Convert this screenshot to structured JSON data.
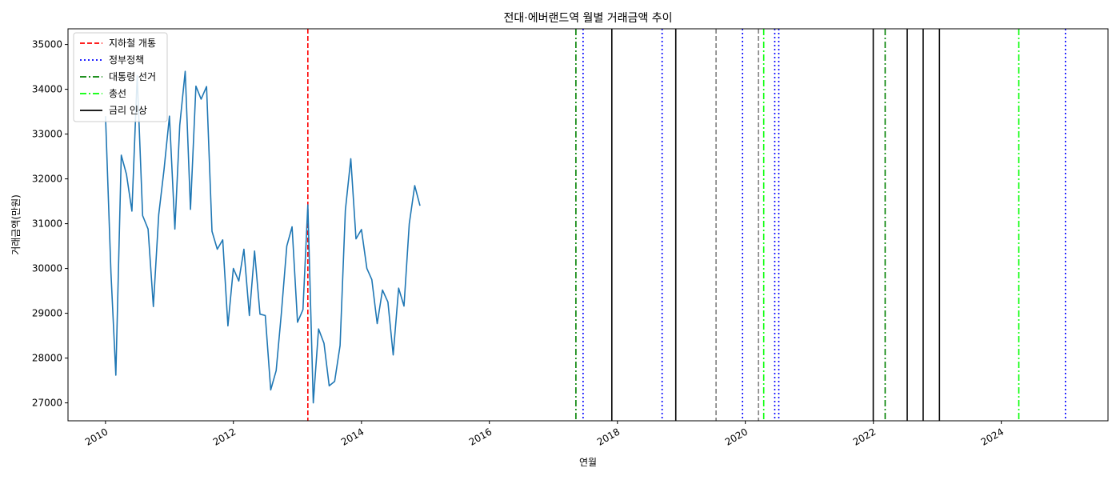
{
  "chart_data": {
    "type": "line",
    "title": "전대·에버랜드역 월별 거래금액 추이",
    "xlabel": "연월",
    "ylabel": "거래금액(만원)",
    "xlim": [
      "2009-06-01",
      "2025-09-01"
    ],
    "ylim": [
      26600,
      35350
    ],
    "x_ticks": [
      "2010",
      "2012",
      "2014",
      "2016",
      "2018",
      "2020",
      "2022",
      "2024"
    ],
    "y_ticks": [
      27000,
      28000,
      29000,
      30000,
      31000,
      32000,
      33000,
      34000,
      35000
    ],
    "legend_position": "top-left",
    "series": [
      {
        "color": "#1f77b4",
        "points": [
          [
            "2010-01-01",
            33400
          ],
          [
            "2010-02-01",
            29900
          ],
          [
            "2010-03-01",
            27620
          ],
          [
            "2010-04-01",
            32530
          ],
          [
            "2010-05-01",
            32100
          ],
          [
            "2010-06-01",
            31280
          ],
          [
            "2010-07-01",
            34300
          ],
          [
            "2010-08-01",
            31180
          ],
          [
            "2010-09-01",
            30880
          ],
          [
            "2010-10-01",
            29150
          ],
          [
            "2010-11-01",
            31200
          ],
          [
            "2010-12-01",
            32200
          ],
          [
            "2011-01-01",
            33400
          ],
          [
            "2011-02-01",
            30880
          ],
          [
            "2011-03-01",
            33200
          ],
          [
            "2011-04-01",
            34400
          ],
          [
            "2011-05-01",
            31320
          ],
          [
            "2011-06-01",
            34070
          ],
          [
            "2011-07-01",
            33780
          ],
          [
            "2011-08-01",
            34060
          ],
          [
            "2011-09-01",
            30830
          ],
          [
            "2011-10-01",
            30430
          ],
          [
            "2011-11-01",
            30640
          ],
          [
            "2011-12-01",
            28720
          ],
          [
            "2012-01-01",
            30000
          ],
          [
            "2012-02-01",
            29720
          ],
          [
            "2012-03-01",
            30430
          ],
          [
            "2012-04-01",
            28950
          ],
          [
            "2012-05-01",
            30390
          ],
          [
            "2012-06-01",
            28980
          ],
          [
            "2012-07-01",
            28950
          ],
          [
            "2012-08-01",
            27290
          ],
          [
            "2012-09-01",
            27720
          ],
          [
            "2012-10-01",
            29000
          ],
          [
            "2012-11-01",
            30500
          ],
          [
            "2012-12-01",
            30930
          ],
          [
            "2013-01-01",
            28800
          ],
          [
            "2013-02-01",
            29080
          ],
          [
            "2013-03-01",
            31420
          ],
          [
            "2013-04-01",
            27000
          ],
          [
            "2013-05-01",
            28650
          ],
          [
            "2013-06-01",
            28330
          ],
          [
            "2013-07-01",
            27380
          ],
          [
            "2013-08-01",
            27480
          ],
          [
            "2013-09-01",
            28280
          ],
          [
            "2013-10-01",
            31300
          ],
          [
            "2013-11-01",
            32450
          ],
          [
            "2013-12-01",
            30660
          ],
          [
            "2014-01-01",
            30870
          ],
          [
            "2014-02-01",
            30000
          ],
          [
            "2014-03-01",
            29750
          ],
          [
            "2014-04-01",
            28770
          ],
          [
            "2014-05-01",
            29520
          ],
          [
            "2014-06-01",
            29250
          ],
          [
            "2014-07-01",
            28070
          ],
          [
            "2014-08-01",
            29560
          ],
          [
            "2014-09-01",
            29160
          ],
          [
            "2014-10-01",
            31000
          ],
          [
            "2014-11-01",
            31850
          ],
          [
            "2014-12-01",
            31400
          ]
        ]
      }
    ],
    "event_lines": [
      {
        "date": "2013-03-01",
        "category": "subway"
      },
      {
        "date": "2017-05-09",
        "category": "presidential"
      },
      {
        "date": "2017-06-19",
        "category": "policy"
      },
      {
        "date": "2017-11-30",
        "category": "rate"
      },
      {
        "date": "2018-09-13",
        "category": "policy"
      },
      {
        "date": "2018-11-30",
        "category": "rate"
      },
      {
        "date": "2019-07-18",
        "category": "other"
      },
      {
        "date": "2019-12-16",
        "category": "policy"
      },
      {
        "date": "2020-03-16",
        "category": "other"
      },
      {
        "date": "2020-04-15",
        "category": "general"
      },
      {
        "date": "2020-06-17",
        "category": "policy"
      },
      {
        "date": "2020-07-10",
        "category": "policy"
      },
      {
        "date": "2021-12-31",
        "category": "rate"
      },
      {
        "date": "2022-03-09",
        "category": "presidential"
      },
      {
        "date": "2022-07-13",
        "category": "rate"
      },
      {
        "date": "2022-10-12",
        "category": "rate"
      },
      {
        "date": "2023-01-13",
        "category": "rate"
      },
      {
        "date": "2024-04-10",
        "category": "general"
      },
      {
        "date": "2025-01-01",
        "category": "policy"
      }
    ],
    "event_styles": {
      "subway": {
        "color": "#ff0000",
        "dash": "6,3"
      },
      "policy": {
        "color": "#0000ff",
        "dash": "2,3"
      },
      "presidential": {
        "color": "#008000",
        "dash": "8,3,2,3"
      },
      "general": {
        "color": "#00ff00",
        "dash": "8,3,2,3"
      },
      "rate": {
        "color": "#000000",
        "dash": ""
      },
      "other": {
        "color": "#808080",
        "dash": "6,3"
      }
    },
    "legend": [
      {
        "label": "지하철 개통",
        "category": "subway"
      },
      {
        "label": "정부정책",
        "category": "policy"
      },
      {
        "label": "대통령 선거",
        "category": "presidential"
      },
      {
        "label": "총선",
        "category": "general"
      },
      {
        "label": "금리 인상",
        "category": "rate"
      }
    ]
  }
}
